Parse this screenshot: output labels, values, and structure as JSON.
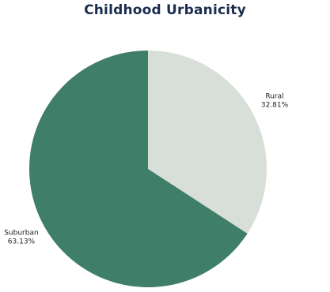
{
  "chart_data": {
    "type": "pie",
    "title": "Childhood Urbanicity",
    "slices": [
      {
        "label": "Rural",
        "value_label": "32.81%",
        "value": 32.81,
        "color": "#d8dfd8"
      },
      {
        "label": "Suburban",
        "value_label": "63.13%",
        "value": 63.13,
        "color": "#3f7f6a"
      }
    ],
    "start_angle_deg": 0,
    "direction": "clockwise",
    "legend": "none"
  }
}
